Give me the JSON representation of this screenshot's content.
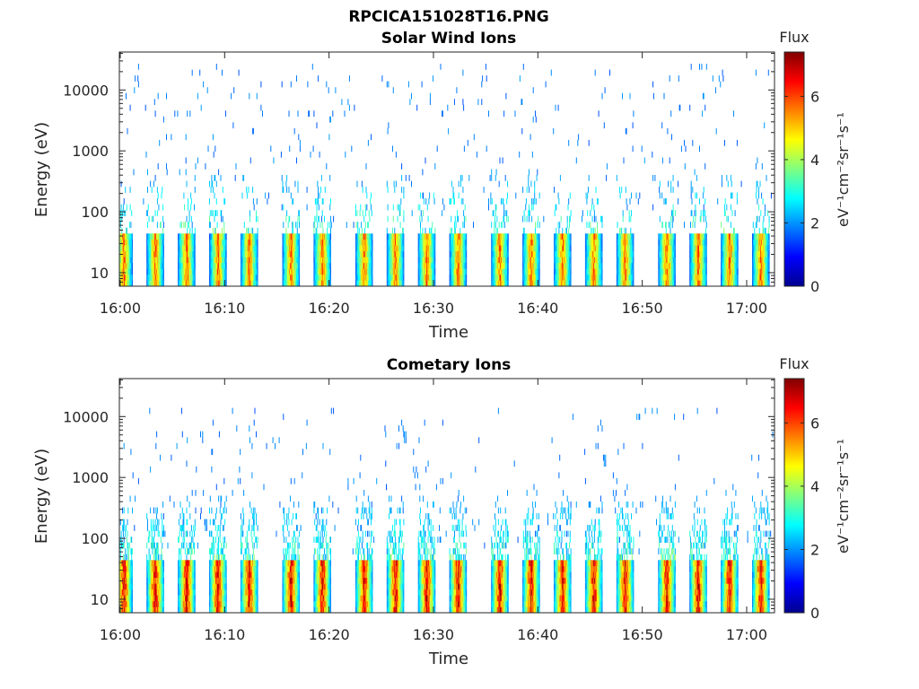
{
  "figure_title": "RPCICA151028T16.PNG",
  "chart_data": [
    {
      "type": "heatmap",
      "title": "Solar Wind Ions",
      "xlabel": "Time",
      "ylabel": "Energy (eV)",
      "y_scale": "log",
      "xlim": [
        "15:59:55",
        "17:02:40"
      ],
      "ylim": [
        6,
        42000
      ],
      "x_ticks": [
        "16:00",
        "16:10",
        "16:20",
        "16:30",
        "16:40",
        "16:50",
        "17:00"
      ],
      "y_ticks": [
        "10",
        "100",
        "1000",
        "10000"
      ],
      "colorbar": {
        "label": "eV⁻¹cm⁻²sr⁻¹s⁻¹",
        "title": "Flux",
        "range": [
          0,
          7.4
        ],
        "ticks": [
          "0",
          "2",
          "4",
          "6"
        ],
        "colormap": "jet"
      },
      "burst_times": [
        "16:00",
        "16:03",
        "16:06",
        "16:09",
        "16:12",
        "16:16",
        "16:19",
        "16:23",
        "16:26",
        "16:29",
        "16:32",
        "16:36",
        "16:39",
        "16:42",
        "16:45",
        "16:48",
        "16:52",
        "16:55",
        "16:58",
        "17:01"
      ],
      "low_energy_band_eV": [
        6,
        45
      ],
      "low_energy_peak_flux": 6,
      "sparse_counts_energy_range_eV": [
        50,
        30000
      ],
      "sparse_counts_flux": 1.5,
      "grid": false
    },
    {
      "type": "heatmap",
      "title": "Cometary Ions",
      "xlabel": "Time",
      "ylabel": "Energy (eV)",
      "y_scale": "log",
      "xlim": [
        "15:59:55",
        "17:02:40"
      ],
      "ylim": [
        6,
        42000
      ],
      "x_ticks": [
        "16:00",
        "16:10",
        "16:20",
        "16:30",
        "16:40",
        "16:50",
        "17:00"
      ],
      "y_ticks": [
        "10",
        "100",
        "1000",
        "10000"
      ],
      "colorbar": {
        "label": "eV⁻¹cm⁻²sr⁻¹s⁻¹",
        "title": "Flux",
        "range": [
          0,
          7.4
        ],
        "ticks": [
          "0",
          "2",
          "4",
          "6"
        ],
        "colormap": "jet"
      },
      "burst_times": [
        "16:00",
        "16:03",
        "16:06",
        "16:09",
        "16:12",
        "16:16",
        "16:19",
        "16:23",
        "16:26",
        "16:29",
        "16:32",
        "16:36",
        "16:39",
        "16:42",
        "16:45",
        "16:48",
        "16:52",
        "16:55",
        "16:58",
        "17:01"
      ],
      "low_energy_band_eV": [
        6,
        45
      ],
      "low_energy_peak_flux": 7,
      "sparse_counts_energy_range_eV": [
        50,
        15000
      ],
      "sparse_counts_flux": 1.5,
      "grid": false
    }
  ]
}
